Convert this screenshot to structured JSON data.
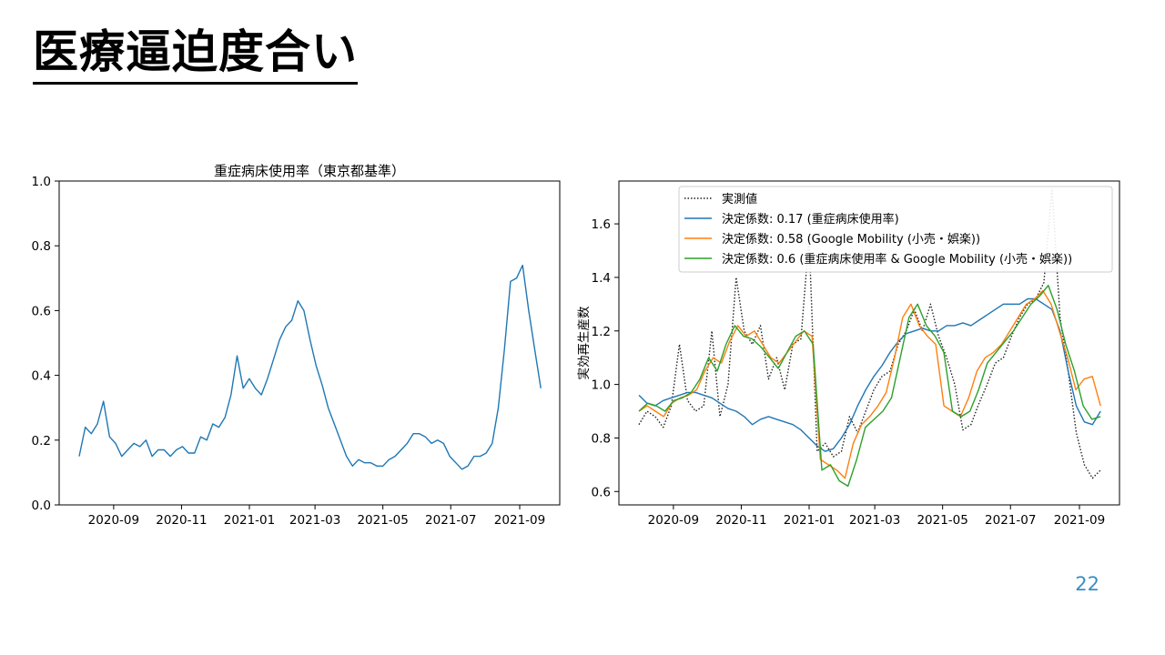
{
  "slide": {
    "title": "医療逼迫度合い",
    "page_number": "22"
  },
  "chart_data": [
    {
      "type": "line",
      "title": "重症病床使用率（東京都基準）",
      "xlabel": "",
      "ylabel": "",
      "x_start": "2020-08-01",
      "x_end": "2021-09-20",
      "xlim": [
        "2020-07-14",
        "2021-10-07"
      ],
      "ylim": [
        0.0,
        1.0
      ],
      "x_ticks": [
        "2020-09",
        "2020-11",
        "2021-01",
        "2021-03",
        "2021-05",
        "2021-07",
        "2021-09"
      ],
      "y_ticks": [
        "0.0",
        "0.2",
        "0.4",
        "0.6",
        "0.8",
        "1.0"
      ],
      "grid": false,
      "series": [
        {
          "name": "",
          "color": "#1f77b4",
          "style": "solid",
          "values": [
            0.15,
            0.24,
            0.22,
            0.25,
            0.32,
            0.21,
            0.19,
            0.15,
            0.17,
            0.19,
            0.18,
            0.2,
            0.15,
            0.17,
            0.17,
            0.15,
            0.17,
            0.18,
            0.16,
            0.16,
            0.21,
            0.2,
            0.25,
            0.24,
            0.27,
            0.34,
            0.46,
            0.36,
            0.39,
            0.36,
            0.34,
            0.39,
            0.45,
            0.51,
            0.55,
            0.57,
            0.63,
            0.6,
            0.51,
            0.43,
            0.37,
            0.3,
            0.25,
            0.2,
            0.15,
            0.12,
            0.14,
            0.13,
            0.13,
            0.12,
            0.12,
            0.14,
            0.15,
            0.17,
            0.19,
            0.22,
            0.22,
            0.21,
            0.19,
            0.2,
            0.19,
            0.15,
            0.13,
            0.11,
            0.12,
            0.15,
            0.15,
            0.16,
            0.19,
            0.3,
            0.48,
            0.69,
            0.7,
            0.74,
            0.6,
            0.48,
            0.36
          ]
        }
      ]
    },
    {
      "type": "line",
      "title": "",
      "xlabel": "",
      "ylabel": "実効再生産数",
      "x_start": "2020-08-01",
      "x_end": "2021-09-20",
      "xlim": [
        "2020-07-14",
        "2021-10-07"
      ],
      "ylim": [
        0.55,
        1.76
      ],
      "x_ticks": [
        "2020-09",
        "2020-11",
        "2021-01",
        "2021-03",
        "2021-05",
        "2021-07",
        "2021-09"
      ],
      "y_ticks": [
        "0.6",
        "0.8",
        "1.0",
        "1.2",
        "1.4",
        "1.6"
      ],
      "grid": false,
      "legend_position": "top-right",
      "series": [
        {
          "name": "実測値",
          "color": "#222222",
          "style": "dotted",
          "values": [
            0.85,
            0.9,
            0.88,
            0.84,
            0.92,
            1.15,
            0.94,
            0.9,
            0.92,
            1.2,
            0.88,
            1.0,
            1.4,
            1.2,
            1.15,
            1.22,
            1.02,
            1.1,
            0.98,
            1.15,
            1.17,
            1.55,
            0.75,
            0.78,
            0.73,
            0.75,
            0.88,
            0.82,
            0.9,
            0.98,
            1.03,
            1.05,
            1.15,
            1.2,
            1.28,
            1.2,
            1.3,
            1.18,
            1.1,
            1.0,
            0.83,
            0.85,
            0.93,
            1.0,
            1.08,
            1.1,
            1.18,
            1.25,
            1.3,
            1.32,
            1.38,
            1.73,
            1.25,
            1.05,
            0.82,
            0.7,
            0.65,
            0.68
          ]
        },
        {
          "name": "決定係数: 0.17 (重症病床使用率)",
          "color": "#1f77b4",
          "style": "solid",
          "values": [
            0.96,
            0.93,
            0.92,
            0.94,
            0.95,
            0.96,
            0.97,
            0.97,
            0.96,
            0.95,
            0.93,
            0.91,
            0.9,
            0.88,
            0.85,
            0.87,
            0.88,
            0.87,
            0.86,
            0.85,
            0.83,
            0.8,
            0.77,
            0.75,
            0.76,
            0.8,
            0.85,
            0.92,
            0.98,
            1.03,
            1.07,
            1.12,
            1.16,
            1.19,
            1.2,
            1.21,
            1.2,
            1.2,
            1.22,
            1.22,
            1.23,
            1.22,
            1.24,
            1.26,
            1.28,
            1.3,
            1.3,
            1.3,
            1.32,
            1.32,
            1.3,
            1.28,
            1.2,
            1.05,
            0.92,
            0.86,
            0.85,
            0.9
          ]
        },
        {
          "name": "決定係数: 0.58 (Google Mobility (小売・娯楽))",
          "color": "#ff7f0e",
          "style": "solid",
          "values": [
            0.9,
            0.92,
            0.9,
            0.88,
            0.93,
            0.95,
            0.96,
            0.98,
            1.05,
            1.1,
            1.08,
            1.16,
            1.22,
            1.18,
            1.2,
            1.15,
            1.1,
            1.08,
            1.12,
            1.16,
            1.2,
            1.18,
            0.72,
            0.7,
            0.68,
            0.65,
            0.78,
            0.85,
            0.88,
            0.92,
            0.97,
            1.1,
            1.25,
            1.3,
            1.22,
            1.18,
            1.15,
            0.92,
            0.9,
            0.88,
            0.95,
            1.05,
            1.1,
            1.12,
            1.15,
            1.2,
            1.25,
            1.3,
            1.32,
            1.35,
            1.3,
            1.2,
            1.1,
            0.98,
            1.02,
            1.03,
            0.92
          ]
        },
        {
          "name": "決定係数: 0.6 (重症病床使用率 & Google Mobility (小売・娯楽))",
          "color": "#2ca02c",
          "style": "solid",
          "values": [
            0.9,
            0.93,
            0.92,
            0.9,
            0.94,
            0.95,
            0.97,
            1.02,
            1.1,
            1.05,
            1.15,
            1.22,
            1.18,
            1.17,
            1.14,
            1.1,
            1.06,
            1.12,
            1.18,
            1.2,
            1.15,
            0.68,
            0.7,
            0.64,
            0.62,
            0.72,
            0.84,
            0.87,
            0.9,
            0.95,
            1.1,
            1.25,
            1.3,
            1.22,
            1.18,
            1.12,
            0.9,
            0.88,
            0.9,
            0.98,
            1.08,
            1.12,
            1.16,
            1.2,
            1.25,
            1.3,
            1.33,
            1.37,
            1.28,
            1.15,
            1.05,
            0.92,
            0.87,
            0.88
          ]
        }
      ]
    }
  ]
}
